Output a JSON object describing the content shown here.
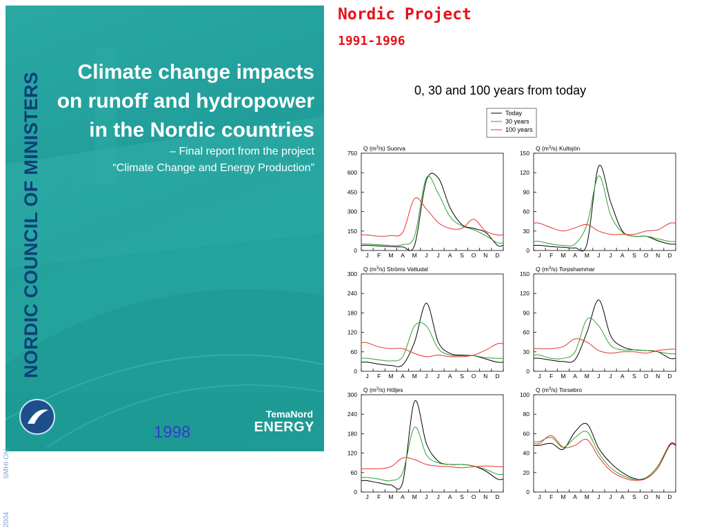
{
  "cover": {
    "publisher": "NORDIC COUNCIL OF MINISTERS",
    "title_lines": [
      "Climate change impacts",
      "on runoff and hydropower",
      "in the Nordic countries"
    ],
    "subtitle_lines": [
      "– Final report from the project",
      "“Climate Change and Energy Production”"
    ],
    "series_line1": "TemaNord",
    "series_line2": "ENERGY",
    "colors": {
      "background": "#22a09a",
      "publisher_text": "#0d3f7a"
    }
  },
  "year_label": "1998",
  "side_text": {
    "org": "SMHI-OH",
    "year": "2004"
  },
  "header": {
    "title": "Nordic Project",
    "years": "1991-1996"
  },
  "subtitle": "0, 30 and 100 years from today",
  "legend": {
    "entries": [
      {
        "name": "Today",
        "color": "#000000"
      },
      {
        "name": "30 years",
        "color": "#2ca02c"
      },
      {
        "name": "100 years",
        "color": "#e8302a"
      }
    ]
  },
  "chart_data": [
    {
      "type": "line",
      "title": "Q (m3/s) Suorva",
      "x": [
        "J",
        "F",
        "M",
        "A",
        "M",
        "J",
        "J",
        "A",
        "S",
        "O",
        "N",
        "D"
      ],
      "ylim": [
        0,
        750
      ],
      "yticks": [
        0,
        150,
        300,
        450,
        600,
        750
      ],
      "series": [
        {
          "name": "Today",
          "values": [
            40,
            35,
            30,
            28,
            40,
            540,
            560,
            330,
            200,
            170,
            140,
            40
          ]
        },
        {
          "name": "30 years",
          "values": [
            50,
            45,
            40,
            45,
            110,
            560,
            440,
            260,
            190,
            160,
            115,
            60
          ]
        },
        {
          "name": "100 years",
          "values": [
            120,
            110,
            115,
            140,
            400,
            320,
            215,
            170,
            170,
            240,
            150,
            120
          ]
        }
      ]
    },
    {
      "type": "line",
      "title": "Q (m3/s) Kultsjön",
      "x": [
        "J",
        "F",
        "M",
        "A",
        "M",
        "J",
        "J",
        "A",
        "S",
        "O",
        "N",
        "D"
      ],
      "ylim": [
        0,
        150
      ],
      "yticks": [
        0,
        30,
        60,
        90,
        120,
        150
      ],
      "series": [
        {
          "name": "Today",
          "values": [
            8,
            6,
            5,
            4,
            10,
            130,
            75,
            30,
            22,
            22,
            15,
            10
          ]
        },
        {
          "name": "30 years",
          "values": [
            14,
            10,
            8,
            10,
            40,
            115,
            55,
            28,
            22,
            22,
            18,
            14
          ]
        },
        {
          "name": "100 years",
          "values": [
            42,
            35,
            30,
            35,
            40,
            30,
            25,
            25,
            25,
            30,
            32,
            42
          ]
        }
      ]
    },
    {
      "type": "line",
      "title": "Q (m3/s) Ströms Vattudal",
      "x": [
        "J",
        "F",
        "M",
        "A",
        "M",
        "J",
        "J",
        "A",
        "S",
        "O",
        "N",
        "D"
      ],
      "ylim": [
        0,
        300
      ],
      "yticks": [
        0,
        60,
        120,
        180,
        240,
        300
      ],
      "series": [
        {
          "name": "Today",
          "values": [
            28,
            22,
            18,
            20,
            90,
            210,
            90,
            55,
            50,
            48,
            38,
            28
          ]
        },
        {
          "name": "30 years",
          "values": [
            40,
            35,
            32,
            45,
            140,
            140,
            70,
            50,
            48,
            48,
            42,
            40
          ]
        },
        {
          "name": "100 years",
          "values": [
            88,
            75,
            70,
            70,
            55,
            45,
            50,
            45,
            45,
            50,
            65,
            85
          ]
        }
      ]
    },
    {
      "type": "line",
      "title": "Q (m3/s) Torpshammar",
      "x": [
        "J",
        "F",
        "M",
        "A",
        "M",
        "J",
        "J",
        "A",
        "S",
        "O",
        "N",
        "D"
      ],
      "ylim": [
        0,
        150
      ],
      "yticks": [
        0,
        30,
        60,
        90,
        120,
        150
      ],
      "series": [
        {
          "name": "Today",
          "values": [
            20,
            17,
            15,
            18,
            60,
            110,
            55,
            38,
            33,
            32,
            30,
            20
          ]
        },
        {
          "name": "30 years",
          "values": [
            25,
            20,
            20,
            30,
            80,
            70,
            40,
            33,
            33,
            32,
            30,
            27
          ]
        },
        {
          "name": "100 years",
          "values": [
            35,
            35,
            38,
            50,
            45,
            32,
            28,
            30,
            30,
            28,
            32,
            34
          ]
        }
      ]
    },
    {
      "type": "line",
      "title": "Q (m3/s) Höljes",
      "x": [
        "J",
        "F",
        "M",
        "A",
        "M",
        "J",
        "J",
        "A",
        "S",
        "O",
        "N",
        "D"
      ],
      "ylim": [
        0,
        300
      ],
      "yticks": [
        0,
        60,
        120,
        180,
        240,
        300
      ],
      "series": [
        {
          "name": "Today",
          "values": [
            35,
            28,
            22,
            30,
            280,
            150,
            95,
            85,
            85,
            80,
            65,
            40
          ]
        },
        {
          "name": "30 years",
          "values": [
            45,
            40,
            35,
            60,
            200,
            115,
            90,
            85,
            85,
            80,
            70,
            55
          ]
        },
        {
          "name": "100 years",
          "values": [
            72,
            72,
            78,
            105,
            100,
            85,
            80,
            78,
            75,
            78,
            80,
            78
          ]
        }
      ]
    },
    {
      "type": "line",
      "title": "Q (m3/s) Torsebro",
      "x": [
        "J",
        "F",
        "M",
        "A",
        "M",
        "J",
        "J",
        "A",
        "S",
        "O",
        "N",
        "D"
      ],
      "ylim": [
        0,
        100
      ],
      "yticks": [
        0,
        20,
        40,
        60,
        80,
        100
      ],
      "series": [
        {
          "name": "Today",
          "values": [
            48,
            50,
            44,
            62,
            70,
            45,
            30,
            20,
            14,
            14,
            25,
            48
          ]
        },
        {
          "name": "30 years",
          "values": [
            52,
            56,
            46,
            56,
            62,
            40,
            25,
            17,
            13,
            15,
            27,
            49
          ]
        },
        {
          "name": "100 years",
          "values": [
            50,
            58,
            46,
            48,
            54,
            36,
            22,
            15,
            12,
            14,
            25,
            49
          ]
        }
      ]
    }
  ]
}
